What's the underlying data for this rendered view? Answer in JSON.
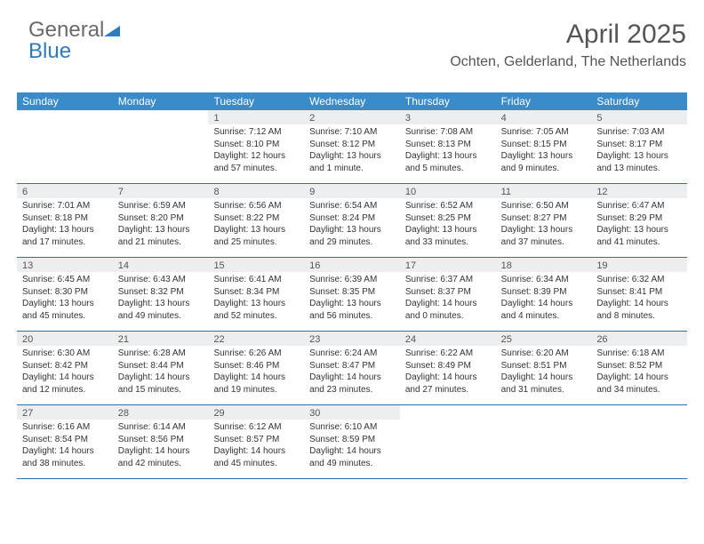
{
  "logo": {
    "text1": "General",
    "text2": "Blue"
  },
  "title": "April 2025",
  "location": "Ochten, Gelderland, The Netherlands",
  "colors": {
    "header_bg": "#3a8bc9",
    "header_text": "#ffffff",
    "daynum_bg": "#eceef0",
    "border": "#2f6fa8",
    "body_text": "#333333",
    "logo_gray": "#6a6a6a",
    "logo_blue": "#2f7bbf"
  },
  "day_headers": [
    "Sunday",
    "Monday",
    "Tuesday",
    "Wednesday",
    "Thursday",
    "Friday",
    "Saturday"
  ],
  "weeks": [
    [
      {
        "n": "",
        "sunrise": "",
        "sunset": "",
        "daylight": ""
      },
      {
        "n": "",
        "sunrise": "",
        "sunset": "",
        "daylight": ""
      },
      {
        "n": "1",
        "sunrise": "Sunrise: 7:12 AM",
        "sunset": "Sunset: 8:10 PM",
        "daylight": "Daylight: 12 hours and 57 minutes."
      },
      {
        "n": "2",
        "sunrise": "Sunrise: 7:10 AM",
        "sunset": "Sunset: 8:12 PM",
        "daylight": "Daylight: 13 hours and 1 minute."
      },
      {
        "n": "3",
        "sunrise": "Sunrise: 7:08 AM",
        "sunset": "Sunset: 8:13 PM",
        "daylight": "Daylight: 13 hours and 5 minutes."
      },
      {
        "n": "4",
        "sunrise": "Sunrise: 7:05 AM",
        "sunset": "Sunset: 8:15 PM",
        "daylight": "Daylight: 13 hours and 9 minutes."
      },
      {
        "n": "5",
        "sunrise": "Sunrise: 7:03 AM",
        "sunset": "Sunset: 8:17 PM",
        "daylight": "Daylight: 13 hours and 13 minutes."
      }
    ],
    [
      {
        "n": "6",
        "sunrise": "Sunrise: 7:01 AM",
        "sunset": "Sunset: 8:18 PM",
        "daylight": "Daylight: 13 hours and 17 minutes."
      },
      {
        "n": "7",
        "sunrise": "Sunrise: 6:59 AM",
        "sunset": "Sunset: 8:20 PM",
        "daylight": "Daylight: 13 hours and 21 minutes."
      },
      {
        "n": "8",
        "sunrise": "Sunrise: 6:56 AM",
        "sunset": "Sunset: 8:22 PM",
        "daylight": "Daylight: 13 hours and 25 minutes."
      },
      {
        "n": "9",
        "sunrise": "Sunrise: 6:54 AM",
        "sunset": "Sunset: 8:24 PM",
        "daylight": "Daylight: 13 hours and 29 minutes."
      },
      {
        "n": "10",
        "sunrise": "Sunrise: 6:52 AM",
        "sunset": "Sunset: 8:25 PM",
        "daylight": "Daylight: 13 hours and 33 minutes."
      },
      {
        "n": "11",
        "sunrise": "Sunrise: 6:50 AM",
        "sunset": "Sunset: 8:27 PM",
        "daylight": "Daylight: 13 hours and 37 minutes."
      },
      {
        "n": "12",
        "sunrise": "Sunrise: 6:47 AM",
        "sunset": "Sunset: 8:29 PM",
        "daylight": "Daylight: 13 hours and 41 minutes."
      }
    ],
    [
      {
        "n": "13",
        "sunrise": "Sunrise: 6:45 AM",
        "sunset": "Sunset: 8:30 PM",
        "daylight": "Daylight: 13 hours and 45 minutes."
      },
      {
        "n": "14",
        "sunrise": "Sunrise: 6:43 AM",
        "sunset": "Sunset: 8:32 PM",
        "daylight": "Daylight: 13 hours and 49 minutes."
      },
      {
        "n": "15",
        "sunrise": "Sunrise: 6:41 AM",
        "sunset": "Sunset: 8:34 PM",
        "daylight": "Daylight: 13 hours and 52 minutes."
      },
      {
        "n": "16",
        "sunrise": "Sunrise: 6:39 AM",
        "sunset": "Sunset: 8:35 PM",
        "daylight": "Daylight: 13 hours and 56 minutes."
      },
      {
        "n": "17",
        "sunrise": "Sunrise: 6:37 AM",
        "sunset": "Sunset: 8:37 PM",
        "daylight": "Daylight: 14 hours and 0 minutes."
      },
      {
        "n": "18",
        "sunrise": "Sunrise: 6:34 AM",
        "sunset": "Sunset: 8:39 PM",
        "daylight": "Daylight: 14 hours and 4 minutes."
      },
      {
        "n": "19",
        "sunrise": "Sunrise: 6:32 AM",
        "sunset": "Sunset: 8:41 PM",
        "daylight": "Daylight: 14 hours and 8 minutes."
      }
    ],
    [
      {
        "n": "20",
        "sunrise": "Sunrise: 6:30 AM",
        "sunset": "Sunset: 8:42 PM",
        "daylight": "Daylight: 14 hours and 12 minutes."
      },
      {
        "n": "21",
        "sunrise": "Sunrise: 6:28 AM",
        "sunset": "Sunset: 8:44 PM",
        "daylight": "Daylight: 14 hours and 15 minutes."
      },
      {
        "n": "22",
        "sunrise": "Sunrise: 6:26 AM",
        "sunset": "Sunset: 8:46 PM",
        "daylight": "Daylight: 14 hours and 19 minutes."
      },
      {
        "n": "23",
        "sunrise": "Sunrise: 6:24 AM",
        "sunset": "Sunset: 8:47 PM",
        "daylight": "Daylight: 14 hours and 23 minutes."
      },
      {
        "n": "24",
        "sunrise": "Sunrise: 6:22 AM",
        "sunset": "Sunset: 8:49 PM",
        "daylight": "Daylight: 14 hours and 27 minutes."
      },
      {
        "n": "25",
        "sunrise": "Sunrise: 6:20 AM",
        "sunset": "Sunset: 8:51 PM",
        "daylight": "Daylight: 14 hours and 31 minutes."
      },
      {
        "n": "26",
        "sunrise": "Sunrise: 6:18 AM",
        "sunset": "Sunset: 8:52 PM",
        "daylight": "Daylight: 14 hours and 34 minutes."
      }
    ],
    [
      {
        "n": "27",
        "sunrise": "Sunrise: 6:16 AM",
        "sunset": "Sunset: 8:54 PM",
        "daylight": "Daylight: 14 hours and 38 minutes."
      },
      {
        "n": "28",
        "sunrise": "Sunrise: 6:14 AM",
        "sunset": "Sunset: 8:56 PM",
        "daylight": "Daylight: 14 hours and 42 minutes."
      },
      {
        "n": "29",
        "sunrise": "Sunrise: 6:12 AM",
        "sunset": "Sunset: 8:57 PM",
        "daylight": "Daylight: 14 hours and 45 minutes."
      },
      {
        "n": "30",
        "sunrise": "Sunrise: 6:10 AM",
        "sunset": "Sunset: 8:59 PM",
        "daylight": "Daylight: 14 hours and 49 minutes."
      },
      {
        "n": "",
        "sunrise": "",
        "sunset": "",
        "daylight": ""
      },
      {
        "n": "",
        "sunrise": "",
        "sunset": "",
        "daylight": ""
      },
      {
        "n": "",
        "sunrise": "",
        "sunset": "",
        "daylight": ""
      }
    ]
  ]
}
